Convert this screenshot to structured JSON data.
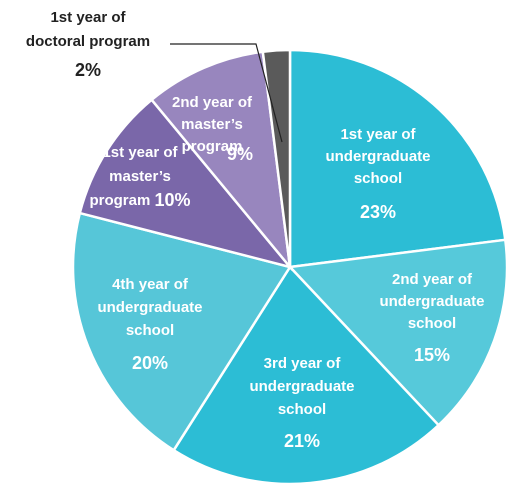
{
  "chart_data": {
    "type": "pie",
    "categories": [
      [
        "1st year of",
        "undergraduate",
        "school"
      ],
      [
        "2nd year of",
        "undergraduate",
        "school"
      ],
      [
        "3rd year of",
        "undergraduate",
        "school"
      ],
      [
        "4th year of",
        "undergraduate",
        "school"
      ],
      [
        "1st  year of",
        "master’s",
        "program"
      ],
      [
        "2nd year of",
        "master’s",
        "program"
      ],
      [
        "1st year of",
        "doctoral program"
      ]
    ],
    "values": [
      23,
      15,
      21,
      20,
      10,
      9,
      2
    ],
    "value_labels": [
      "23%",
      "15%",
      "21%",
      "20%",
      "10%",
      "9%",
      "2%"
    ],
    "colors": [
      "#2cbdd5",
      "#56c9da",
      "#2cbdd5",
      "#56c6d8",
      "#7a67a9",
      "#9886be",
      "#5a5a5a"
    ]
  }
}
